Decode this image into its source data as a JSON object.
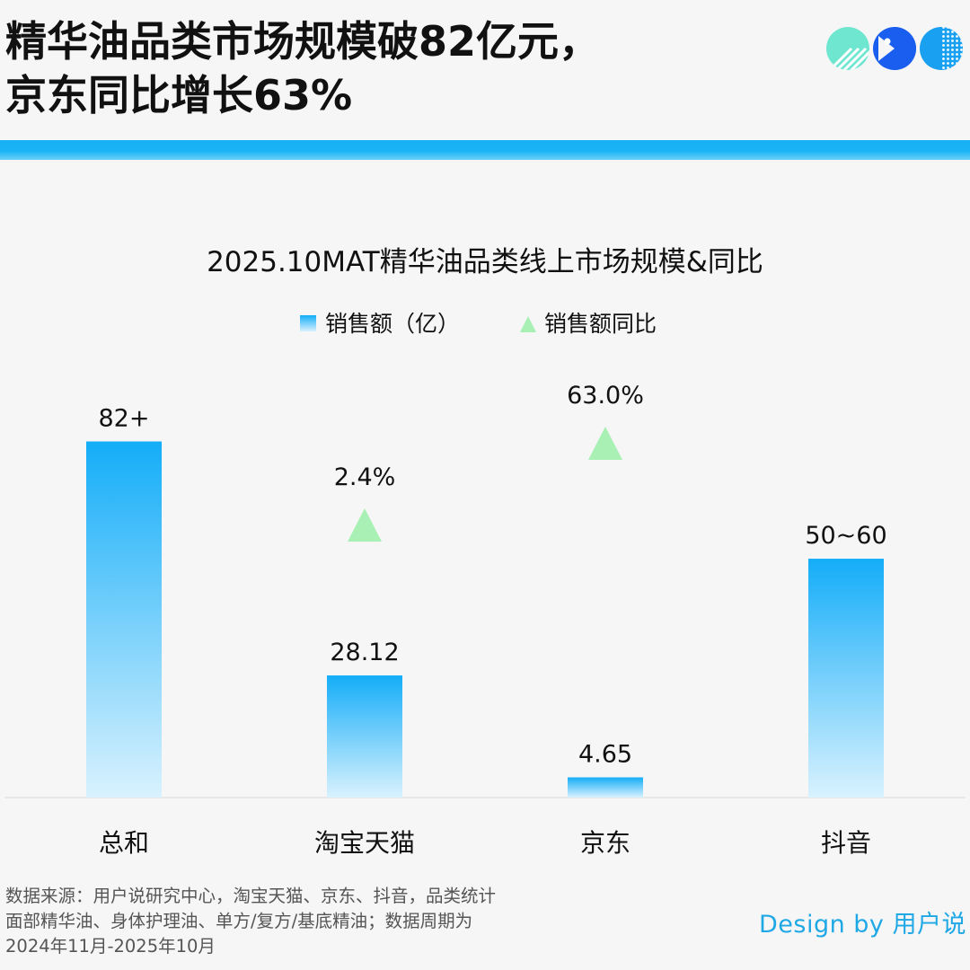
{
  "headline": {
    "line1": "精华油品类市场规模破82亿元，",
    "line2": "京东同比增长63%"
  },
  "logo_icons": [
    "striped-circle-icon",
    "pacman-icon",
    "dotted-circle-icon"
  ],
  "colors": {
    "accent": "#17b1f4",
    "bar_top": "#14adf8",
    "bar_bottom": "#d9f2fe",
    "triangle": "#a8f0b4",
    "credit": "#1fa8e6"
  },
  "chart_data": {
    "type": "bar",
    "title": "2025.10MAT精华油品类线上市场规模&同比",
    "legend": [
      {
        "label": "销售额（亿）",
        "marker": "square"
      },
      {
        "label": "销售额同比",
        "marker": "triangle"
      }
    ],
    "legend_position": "top-center",
    "categories": [
      "总和",
      "淘宝天猫",
      "京东",
      "抖音"
    ],
    "series": [
      {
        "name": "销售额（亿）",
        "values": [
          82,
          28.12,
          4.65,
          55
        ],
        "labels": [
          "82+",
          "28.12",
          "4.65",
          "50~60"
        ]
      },
      {
        "name": "销售额同比",
        "values": [
          null,
          2.4,
          63.0,
          null
        ],
        "labels": [
          "",
          "2.4%",
          "63.0%",
          ""
        ]
      }
    ],
    "ylim": [
      0,
      91
    ],
    "grid": false,
    "xlabel": "",
    "ylabel": ""
  },
  "footer": {
    "source_line1": "数据来源：用户说研究中心，淘宝天猫、京东、抖音，品类统计",
    "source_line2": "面部精华油、身体护理油、单方/复方/基底精油；数据周期为",
    "source_line3": "2024年11月-2025年10月",
    "credit": "Design by 用户说"
  }
}
